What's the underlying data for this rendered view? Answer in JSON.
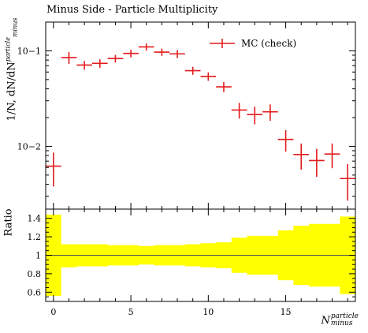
{
  "chart_data": [
    {
      "type": "scatter",
      "title": "Minus Side - Particle Multiplicity",
      "ylabel_prefix": "1/N, dN/dN",
      "ylabel_var_sup": "particle",
      "ylabel_var_sub": "minus",
      "yscale": "log",
      "ylim": [
        0.0022,
        0.2
      ],
      "yticklabels": [
        "10−1",
        "10−2"
      ],
      "yticks": [
        0.1,
        0.01
      ],
      "legend": {
        "position": "top-right",
        "entries": [
          "MC (check)"
        ]
      },
      "series": [
        {
          "name": "MC (check)",
          "color": "#e41a1c",
          "x": [
            0,
            1,
            2,
            3,
            4,
            5,
            6,
            7,
            8,
            9,
            10,
            11,
            12,
            13,
            14,
            15,
            16,
            17,
            18,
            19
          ],
          "y": [
            0.0062,
            0.085,
            0.071,
            0.074,
            0.083,
            0.094,
            0.11,
            0.097,
            0.093,
            0.062,
            0.054,
            0.042,
            0.024,
            0.0215,
            0.023,
            0.0118,
            0.0082,
            0.0071,
            0.0083,
            0.0046
          ],
          "yerr_low": [
            0.0024,
            0.012,
            0.0075,
            0.0075,
            0.0075,
            0.0085,
            0.0095,
            0.0085,
            0.009,
            0.006,
            0.0055,
            0.005,
            0.0045,
            0.0045,
            0.0045,
            0.003,
            0.0025,
            0.0023,
            0.0024,
            0.0019
          ],
          "yerr_high": [
            0.0024,
            0.012,
            0.0075,
            0.0075,
            0.0075,
            0.0085,
            0.0095,
            0.0085,
            0.009,
            0.006,
            0.0055,
            0.005,
            0.0045,
            0.0045,
            0.0045,
            0.003,
            0.0025,
            0.0023,
            0.0024,
            0.0019
          ]
        }
      ]
    },
    {
      "type": "area",
      "ylabel": "Ratio",
      "xlabel_var": "N",
      "xlabel_sup": "particle",
      "xlabel_sub": "minus",
      "xlim": [
        -0.5,
        19.5
      ],
      "ylim": [
        0.5,
        1.5
      ],
      "xticks": [
        0,
        5,
        10,
        15
      ],
      "xticklabels": [
        "0",
        "5",
        "10",
        "15"
      ],
      "yticks": [
        0.6,
        0.8,
        1.0,
        1.2,
        1.4
      ],
      "yticklabels": [
        "0.6",
        "0.8",
        "1",
        "1.2",
        "1.4"
      ],
      "reference_line": 1.0,
      "band_color": "#ffff00",
      "band": {
        "x": [
          0,
          1,
          2,
          3,
          4,
          5,
          6,
          7,
          8,
          9,
          10,
          11,
          12,
          13,
          14,
          15,
          16,
          17,
          18,
          19
        ],
        "low": [
          0.56,
          0.87,
          0.88,
          0.88,
          0.89,
          0.89,
          0.9,
          0.89,
          0.89,
          0.88,
          0.87,
          0.86,
          0.81,
          0.79,
          0.79,
          0.73,
          0.68,
          0.66,
          0.66,
          0.58
        ],
        "high": [
          1.44,
          1.12,
          1.12,
          1.12,
          1.11,
          1.11,
          1.1,
          1.11,
          1.11,
          1.12,
          1.13,
          1.14,
          1.19,
          1.21,
          1.21,
          1.27,
          1.32,
          1.34,
          1.34,
          1.42
        ]
      }
    }
  ]
}
